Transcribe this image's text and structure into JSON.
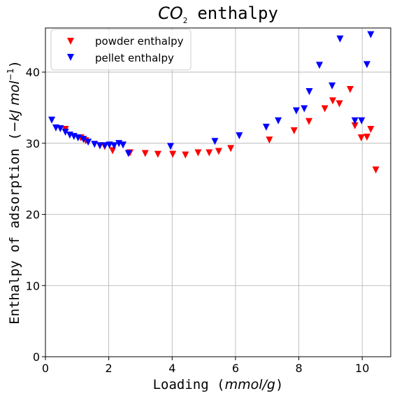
{
  "chart_data": {
    "type": "scatter",
    "title": {
      "subject": "CO",
      "subscript": "2",
      "rest": "enthalpy"
    },
    "xlabel": {
      "text": "Loading",
      "unit": "mmol/g"
    },
    "ylabel": {
      "text": "Enthalpy of adsorption",
      "unit": "−kJ mol",
      "unit_power": "−1"
    },
    "xlim": [
      0,
      10.9
    ],
    "ylim": [
      0,
      46.2
    ],
    "xticks": [
      0,
      2,
      4,
      6,
      8,
      10
    ],
    "yticks": [
      0,
      10,
      20,
      30,
      40
    ],
    "grid": true,
    "legend_position": "top-left",
    "marker": "triangle-down",
    "series": [
      {
        "name": "powder enthalpy",
        "color": "#ff0000",
        "points": [
          [
            0.63,
            32.0
          ],
          [
            1.12,
            30.8
          ],
          [
            1.27,
            30.4
          ],
          [
            1.72,
            29.7
          ],
          [
            1.87,
            29.6
          ],
          [
            2.12,
            29.0
          ],
          [
            2.67,
            28.7
          ],
          [
            3.15,
            28.6
          ],
          [
            3.55,
            28.5
          ],
          [
            4.02,
            28.5
          ],
          [
            4.42,
            28.4
          ],
          [
            4.82,
            28.7
          ],
          [
            5.17,
            28.7
          ],
          [
            5.47,
            28.9
          ],
          [
            5.85,
            29.3
          ],
          [
            7.07,
            30.5
          ],
          [
            7.85,
            31.8
          ],
          [
            8.32,
            33.1
          ],
          [
            8.82,
            34.9
          ],
          [
            9.07,
            36.0
          ],
          [
            9.28,
            35.6
          ],
          [
            9.62,
            37.6
          ],
          [
            9.77,
            32.5
          ],
          [
            9.97,
            30.8
          ],
          [
            10.15,
            30.9
          ],
          [
            10.27,
            32.0
          ],
          [
            10.43,
            26.3
          ]
        ]
      },
      {
        "name": "pellet enthalpy",
        "color": "#0000ff",
        "points": [
          [
            0.2,
            33.3
          ],
          [
            0.33,
            32.2
          ],
          [
            0.47,
            32.1
          ],
          [
            0.63,
            31.6
          ],
          [
            0.77,
            31.2
          ],
          [
            0.9,
            31.0
          ],
          [
            1.03,
            30.8
          ],
          [
            1.2,
            30.6
          ],
          [
            1.35,
            30.2
          ],
          [
            1.55,
            29.9
          ],
          [
            1.72,
            29.7
          ],
          [
            1.88,
            29.7
          ],
          [
            2.02,
            29.8
          ],
          [
            2.17,
            29.7
          ],
          [
            2.32,
            30.0
          ],
          [
            2.45,
            29.8
          ],
          [
            2.62,
            28.6
          ],
          [
            3.95,
            29.6
          ],
          [
            5.35,
            30.3
          ],
          [
            6.12,
            31.1
          ],
          [
            6.97,
            32.3
          ],
          [
            7.35,
            33.2
          ],
          [
            7.92,
            34.6
          ],
          [
            8.17,
            34.9
          ],
          [
            8.33,
            37.3
          ],
          [
            8.65,
            41.0
          ],
          [
            9.05,
            38.1
          ],
          [
            9.3,
            44.7
          ],
          [
            9.77,
            33.2
          ],
          [
            9.98,
            33.2
          ],
          [
            10.15,
            41.1
          ],
          [
            10.27,
            45.3
          ]
        ]
      }
    ]
  }
}
